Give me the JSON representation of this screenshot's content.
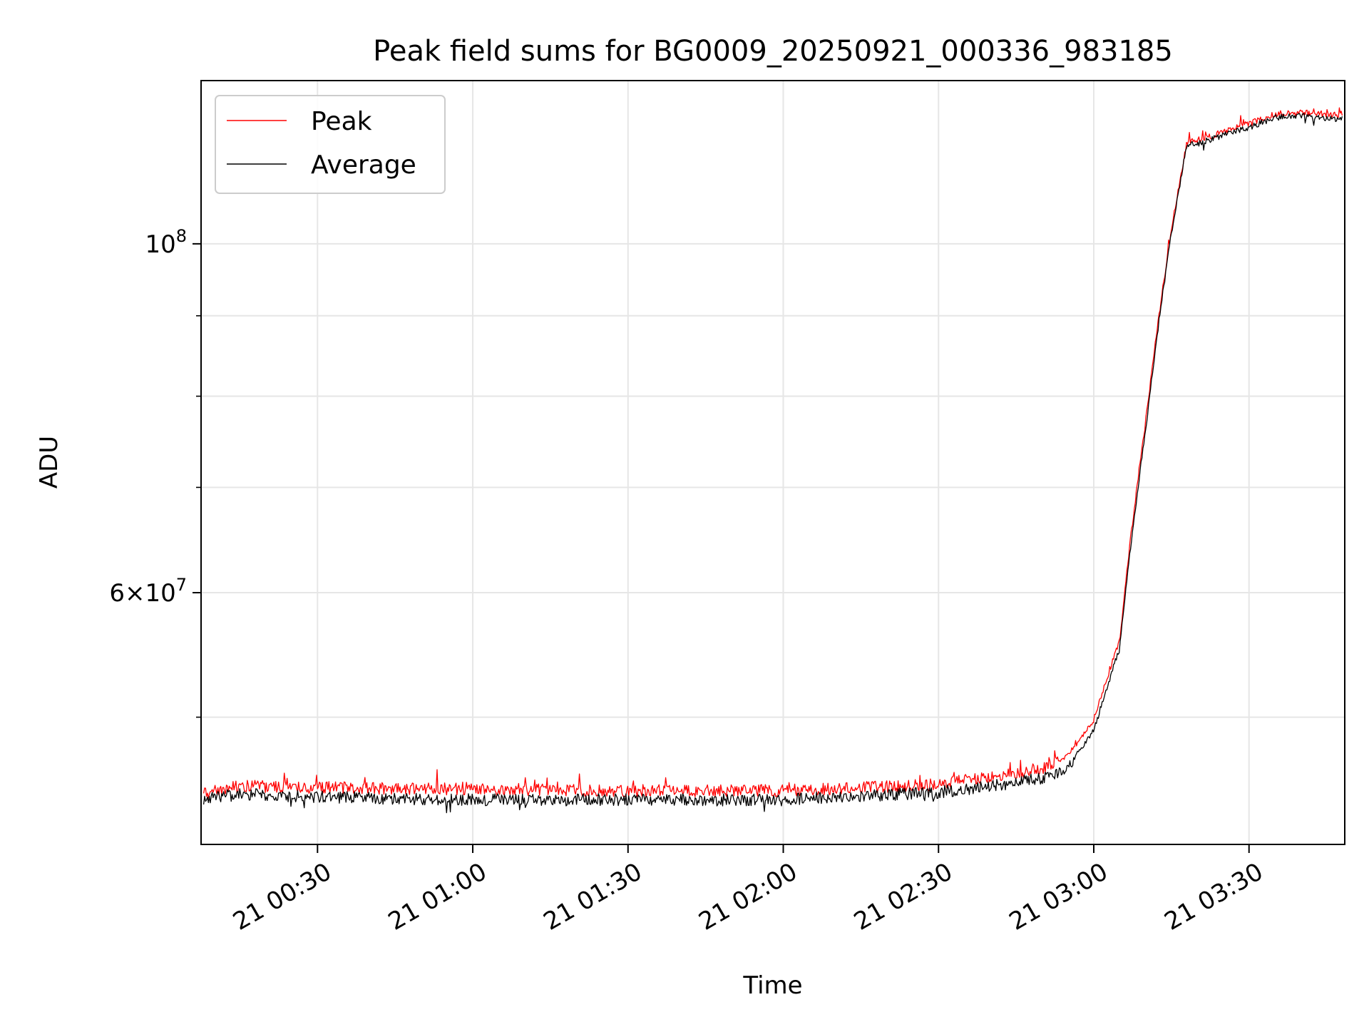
{
  "chart_data": {
    "type": "line",
    "title": "Peak field sums for BG0009_20250921_000336_983185",
    "xlabel": "Time",
    "ylabel": "ADU",
    "y_scale": "log",
    "grid": true,
    "legend_position": "top-left",
    "x_range": [
      "2025-09-21 00:07:30",
      "2025-09-21 03:48:30"
    ],
    "ylim": [
      41500000,
      127000000
    ],
    "x_ticks": [
      {
        "value": "2025-09-21 00:30",
        "label": "21 00:30"
      },
      {
        "value": "2025-09-21 01:00",
        "label": "21 01:00"
      },
      {
        "value": "2025-09-21 01:30",
        "label": "21 01:30"
      },
      {
        "value": "2025-09-21 02:00",
        "label": "21 02:00"
      },
      {
        "value": "2025-09-21 02:30",
        "label": "21 02:30"
      },
      {
        "value": "2025-09-21 03:00",
        "label": "21 03:00"
      },
      {
        "value": "2025-09-21 03:30",
        "label": "21 03:30"
      }
    ],
    "y_major_ticks": [
      {
        "value": 60000000,
        "mantissa": "6",
        "base": "10",
        "exponent": "7"
      },
      {
        "value": 100000000,
        "mantissa": "",
        "base": "10",
        "exponent": "8"
      }
    ],
    "y_minor_ticks": [
      50000000,
      70000000,
      80000000,
      90000000
    ],
    "series": [
      {
        "name": "Peak",
        "color": "#ff0000",
        "x": [
          "2025-09-21 00:08",
          "2025-09-21 00:15",
          "2025-09-21 00:30",
          "2025-09-21 01:00",
          "2025-09-21 01:30",
          "2025-09-21 02:00",
          "2025-09-21 02:30",
          "2025-09-21 02:40",
          "2025-09-21 02:50",
          "2025-09-21 02:55",
          "2025-09-21 03:00",
          "2025-09-21 03:05",
          "2025-09-21 03:10",
          "2025-09-21 03:15",
          "2025-09-21 03:18",
          "2025-09-21 03:20",
          "2025-09-21 03:25",
          "2025-09-21 03:30",
          "2025-09-21 03:35",
          "2025-09-21 03:40",
          "2025-09-21 03:48"
        ],
        "values": [
          44700000,
          45200000,
          45100000,
          45000000,
          44900000,
          44900000,
          45300000,
          45800000,
          46400000,
          47300000,
          49800000,
          56000000,
          77000000,
          102000000,
          116000000,
          116300000,
          117800000,
          119200000,
          121000000,
          121200000,
          120800000
        ]
      },
      {
        "name": "Average",
        "color": "#000000",
        "x": [
          "2025-09-21 00:08",
          "2025-09-21 00:15",
          "2025-09-21 00:30",
          "2025-09-21 01:00",
          "2025-09-21 01:30",
          "2025-09-21 02:00",
          "2025-09-21 02:30",
          "2025-09-21 02:40",
          "2025-09-21 02:50",
          "2025-09-21 02:55",
          "2025-09-21 03:00",
          "2025-09-21 03:05",
          "2025-09-21 03:10",
          "2025-09-21 03:15",
          "2025-09-21 03:18",
          "2025-09-21 03:20",
          "2025-09-21 03:25",
          "2025-09-21 03:30",
          "2025-09-21 03:35",
          "2025-09-21 03:40",
          "2025-09-21 03:48"
        ],
        "values": [
          44300000,
          44700000,
          44500000,
          44300000,
          44300000,
          44300000,
          44800000,
          45200000,
          45700000,
          46400000,
          49000000,
          55300000,
          76000000,
          101500000,
          115500000,
          115800000,
          117200000,
          118600000,
          120300000,
          120600000,
          120000000
        ]
      }
    ]
  }
}
